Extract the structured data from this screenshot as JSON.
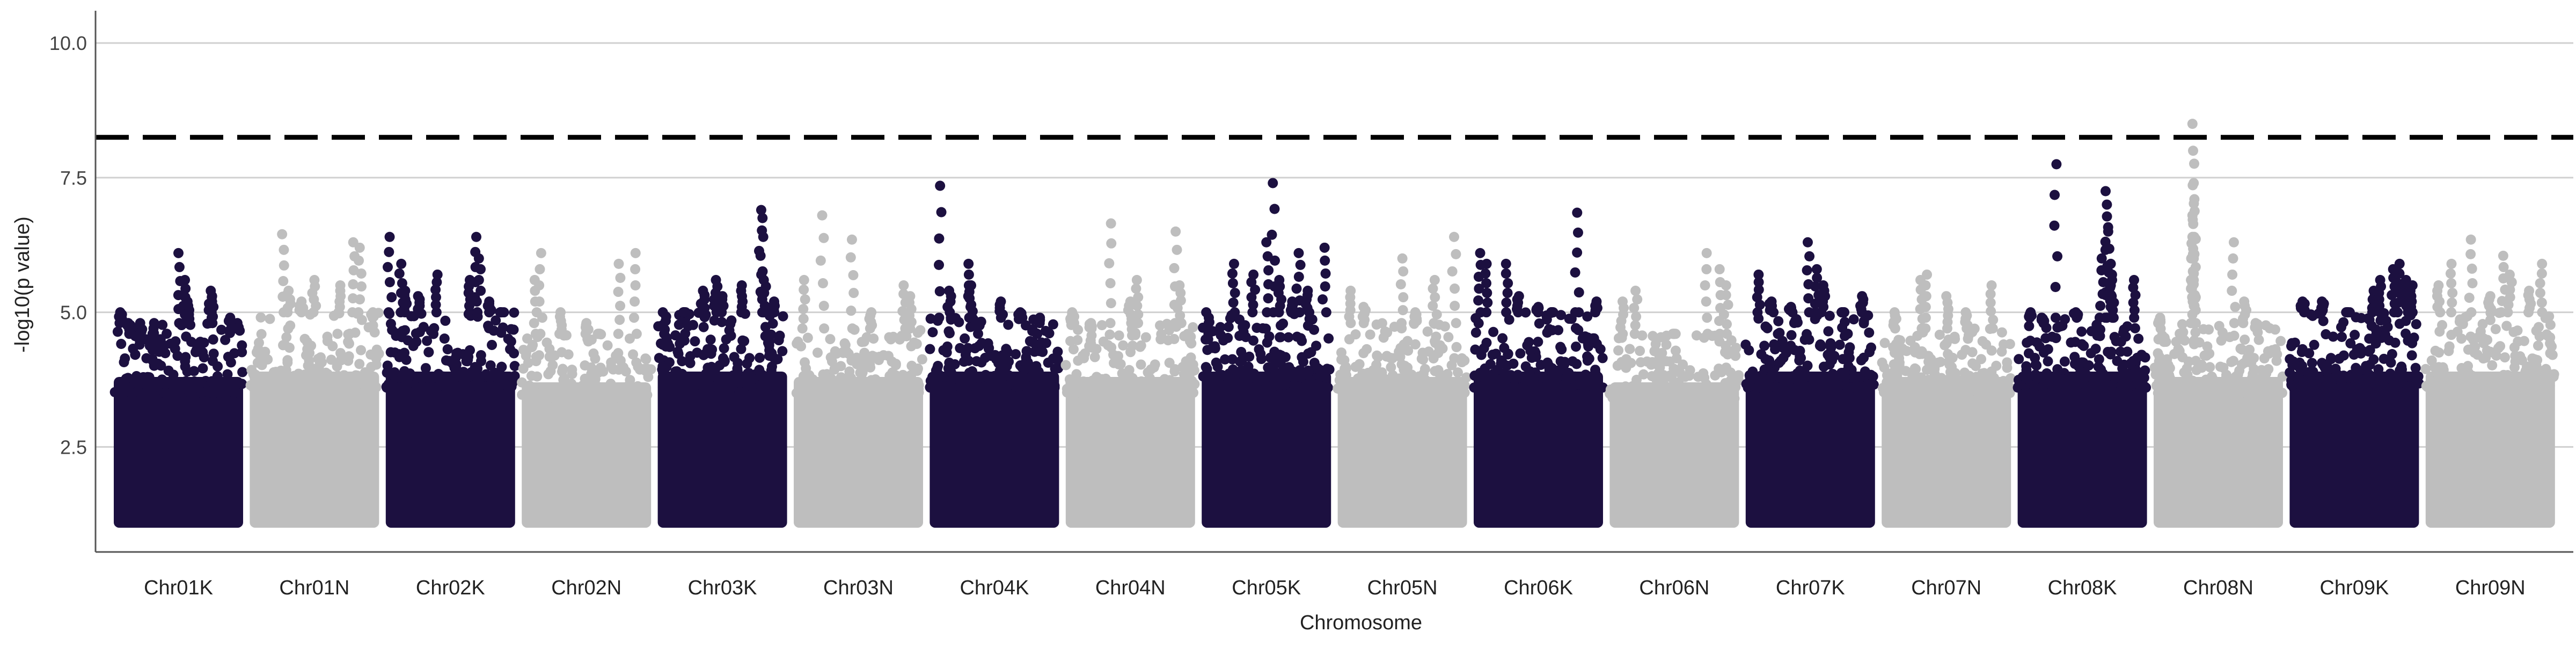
{
  "chart_data": {
    "type": "scatter",
    "title": "",
    "xlabel": "Chromosome",
    "ylabel": "-log10(p value)",
    "ylim": [
      0.55,
      10.6
    ],
    "yticks": [
      2.5,
      5.0,
      7.5,
      10.0
    ],
    "ytick_labels": [
      "2.5",
      "5.0",
      "7.5",
      "10.0"
    ],
    "grid": true,
    "legend": "none",
    "threshold": 8.25,
    "colors": {
      "dark": "#1c1040",
      "light": "#bebebe",
      "threshold": "#000000",
      "grid": "#d0d0d0"
    },
    "categories": [
      "Chr01K",
      "Chr01N",
      "Chr02K",
      "Chr02N",
      "Chr03K",
      "Chr03N",
      "Chr04K",
      "Chr04N",
      "Chr05K",
      "Chr05N",
      "Chr06K",
      "Chr06N",
      "Chr07K",
      "Chr07N",
      "Chr08K",
      "Chr08N",
      "Chr09K",
      "Chr09N"
    ],
    "series": [
      {
        "category": "Chr01K",
        "color": "dark",
        "base_max": 3.8,
        "upper": 4.8,
        "peaks": [
          [
            0.05,
            5.0
          ],
          [
            0.12,
            4.6
          ],
          [
            0.2,
            4.4
          ],
          [
            0.3,
            4.3
          ],
          [
            0.5,
            6.1
          ],
          [
            0.55,
            5.6
          ],
          [
            0.57,
            5.2
          ],
          [
            0.75,
            5.4
          ],
          [
            0.76,
            5.3
          ],
          [
            0.9,
            4.9
          ],
          [
            0.95,
            4.7
          ]
        ]
      },
      {
        "category": "Chr01N",
        "color": "light",
        "base_max": 3.9,
        "upper": 5.0,
        "peaks": [
          [
            0.25,
            6.45
          ],
          [
            0.3,
            5.4
          ],
          [
            0.4,
            5.2
          ],
          [
            0.5,
            5.6
          ],
          [
            0.8,
            6.3
          ],
          [
            0.85,
            6.2
          ],
          [
            0.7,
            5.5
          ],
          [
            0.95,
            4.9
          ]
        ]
      },
      {
        "category": "Chr02K",
        "color": "dark",
        "base_max": 3.9,
        "upper": 5.0,
        "peaks": [
          [
            0.03,
            6.4
          ],
          [
            0.12,
            5.9
          ],
          [
            0.15,
            5.4
          ],
          [
            0.25,
            5.3
          ],
          [
            0.4,
            5.7
          ],
          [
            0.65,
            5.6
          ],
          [
            0.7,
            6.4
          ],
          [
            0.72,
            6.0
          ],
          [
            0.8,
            5.2
          ],
          [
            0.9,
            5.0
          ]
        ]
      },
      {
        "category": "Chr02N",
        "color": "light",
        "base_max": 3.7,
        "upper": 4.6,
        "peaks": [
          [
            0.15,
            6.1
          ],
          [
            0.1,
            5.6
          ],
          [
            0.3,
            5.0
          ],
          [
            0.5,
            4.8
          ],
          [
            0.75,
            5.9
          ],
          [
            0.88,
            6.1
          ],
          [
            0.6,
            4.6
          ]
        ]
      },
      {
        "category": "Chr03K",
        "color": "dark",
        "base_max": 3.9,
        "upper": 5.0,
        "peaks": [
          [
            0.05,
            4.6
          ],
          [
            0.2,
            5.0
          ],
          [
            0.35,
            5.4
          ],
          [
            0.45,
            5.6
          ],
          [
            0.5,
            5.3
          ],
          [
            0.65,
            5.5
          ],
          [
            0.8,
            6.9
          ],
          [
            0.81,
            6.75
          ],
          [
            0.82,
            5.6
          ],
          [
            0.9,
            5.2
          ]
        ]
      },
      {
        "category": "Chr03N",
        "color": "light",
        "base_max": 3.8,
        "upper": 4.7,
        "peaks": [
          [
            0.08,
            5.6
          ],
          [
            0.22,
            6.8
          ],
          [
            0.45,
            6.35
          ],
          [
            0.6,
            5.0
          ],
          [
            0.85,
            5.5
          ],
          [
            0.9,
            5.3
          ]
        ]
      },
      {
        "category": "Chr04K",
        "color": "dark",
        "base_max": 3.9,
        "upper": 4.9,
        "peaks": [
          [
            0.08,
            7.35
          ],
          [
            0.15,
            5.4
          ],
          [
            0.3,
            5.9
          ],
          [
            0.32,
            5.5
          ],
          [
            0.55,
            5.2
          ],
          [
            0.7,
            5.0
          ],
          [
            0.85,
            4.8
          ]
        ]
      },
      {
        "category": "Chr04N",
        "color": "light",
        "base_max": 3.8,
        "upper": 4.8,
        "peaks": [
          [
            0.05,
            5.0
          ],
          [
            0.2,
            4.7
          ],
          [
            0.35,
            6.65
          ],
          [
            0.5,
            5.2
          ],
          [
            0.55,
            5.6
          ],
          [
            0.85,
            6.5
          ],
          [
            0.88,
            5.5
          ]
        ]
      },
      {
        "category": "Chr05K",
        "color": "dark",
        "base_max": 3.9,
        "upper": 5.0,
        "peaks": [
          [
            0.05,
            4.5
          ],
          [
            0.25,
            5.9
          ],
          [
            0.4,
            5.7
          ],
          [
            0.5,
            6.3
          ],
          [
            0.55,
            7.4
          ],
          [
            0.6,
            5.6
          ],
          [
            0.7,
            5.2
          ],
          [
            0.75,
            6.1
          ],
          [
            0.82,
            5.4
          ],
          [
            0.95,
            6.2
          ]
        ]
      },
      {
        "category": "Chr05N",
        "color": "light",
        "base_max": 3.8,
        "upper": 4.8,
        "peaks": [
          [
            0.1,
            5.4
          ],
          [
            0.2,
            5.1
          ],
          [
            0.5,
            6.0
          ],
          [
            0.6,
            5.0
          ],
          [
            0.75,
            5.6
          ],
          [
            0.9,
            6.4
          ]
        ]
      },
      {
        "category": "Chr06K",
        "color": "dark",
        "base_max": 3.9,
        "upper": 5.0,
        "peaks": [
          [
            0.05,
            6.1
          ],
          [
            0.1,
            5.9
          ],
          [
            0.25,
            5.9
          ],
          [
            0.35,
            5.3
          ],
          [
            0.5,
            5.1
          ],
          [
            0.6,
            5.0
          ],
          [
            0.8,
            6.85
          ],
          [
            0.95,
            5.2
          ]
        ]
      },
      {
        "category": "Chr06N",
        "color": "light",
        "base_max": 3.7,
        "upper": 4.6,
        "peaks": [
          [
            0.1,
            5.2
          ],
          [
            0.2,
            5.4
          ],
          [
            0.5,
            4.6
          ],
          [
            0.75,
            6.1
          ],
          [
            0.85,
            5.8
          ],
          [
            0.9,
            5.5
          ]
        ]
      },
      {
        "category": "Chr07K",
        "color": "dark",
        "base_max": 3.9,
        "upper": 5.0,
        "peaks": [
          [
            0.1,
            5.7
          ],
          [
            0.2,
            5.2
          ],
          [
            0.35,
            5.1
          ],
          [
            0.48,
            6.3
          ],
          [
            0.55,
            5.8
          ],
          [
            0.6,
            5.5
          ],
          [
            0.75,
            5.0
          ],
          [
            0.9,
            5.3
          ]
        ]
      },
      {
        "category": "Chr07N",
        "color": "light",
        "base_max": 3.8,
        "upper": 4.7,
        "peaks": [
          [
            0.1,
            5.0
          ],
          [
            0.3,
            5.6
          ],
          [
            0.35,
            5.7
          ],
          [
            0.5,
            5.3
          ],
          [
            0.65,
            5.0
          ],
          [
            0.85,
            5.5
          ]
        ]
      },
      {
        "category": "Chr08K",
        "color": "dark",
        "base_max": 3.9,
        "upper": 4.9,
        "peaks": [
          [
            0.1,
            5.0
          ],
          [
            0.2,
            4.8
          ],
          [
            0.3,
            7.75
          ],
          [
            0.45,
            5.0
          ],
          [
            0.65,
            6.0
          ],
          [
            0.68,
            7.25
          ],
          [
            0.69,
            7.0
          ],
          [
            0.7,
            6.5
          ],
          [
            0.72,
            5.9
          ],
          [
            0.73,
            5.6
          ],
          [
            0.9,
            5.6
          ]
        ]
      },
      {
        "category": "Chr08N",
        "color": "light",
        "base_max": 3.8,
        "upper": 4.8,
        "peaks": [
          [
            0.05,
            4.9
          ],
          [
            0.3,
            8.5
          ],
          [
            0.305,
            8.0
          ],
          [
            0.31,
            7.4
          ],
          [
            0.315,
            7.1
          ],
          [
            0.3,
            6.8
          ],
          [
            0.3,
            6.4
          ],
          [
            0.31,
            6.0
          ],
          [
            0.31,
            5.6
          ],
          [
            0.62,
            6.3
          ],
          [
            0.7,
            5.2
          ],
          [
            0.8,
            4.7
          ]
        ]
      },
      {
        "category": "Chr09K",
        "color": "dark",
        "base_max": 3.9,
        "upper": 5.0,
        "peaks": [
          [
            0.1,
            5.2
          ],
          [
            0.25,
            5.2
          ],
          [
            0.45,
            5.0
          ],
          [
            0.65,
            5.4
          ],
          [
            0.7,
            5.6
          ],
          [
            0.8,
            5.8
          ],
          [
            0.85,
            5.9
          ],
          [
            0.9,
            5.6
          ],
          [
            0.95,
            5.5
          ]
        ]
      },
      {
        "category": "Chr09N",
        "color": "light",
        "base_max": 3.9,
        "upper": 5.0,
        "peaks": [
          [
            0.1,
            5.5
          ],
          [
            0.2,
            5.9
          ],
          [
            0.35,
            6.35
          ],
          [
            0.5,
            5.3
          ],
          [
            0.6,
            6.05
          ],
          [
            0.65,
            5.7
          ],
          [
            0.8,
            5.4
          ],
          [
            0.9,
            5.9
          ]
        ]
      }
    ]
  }
}
